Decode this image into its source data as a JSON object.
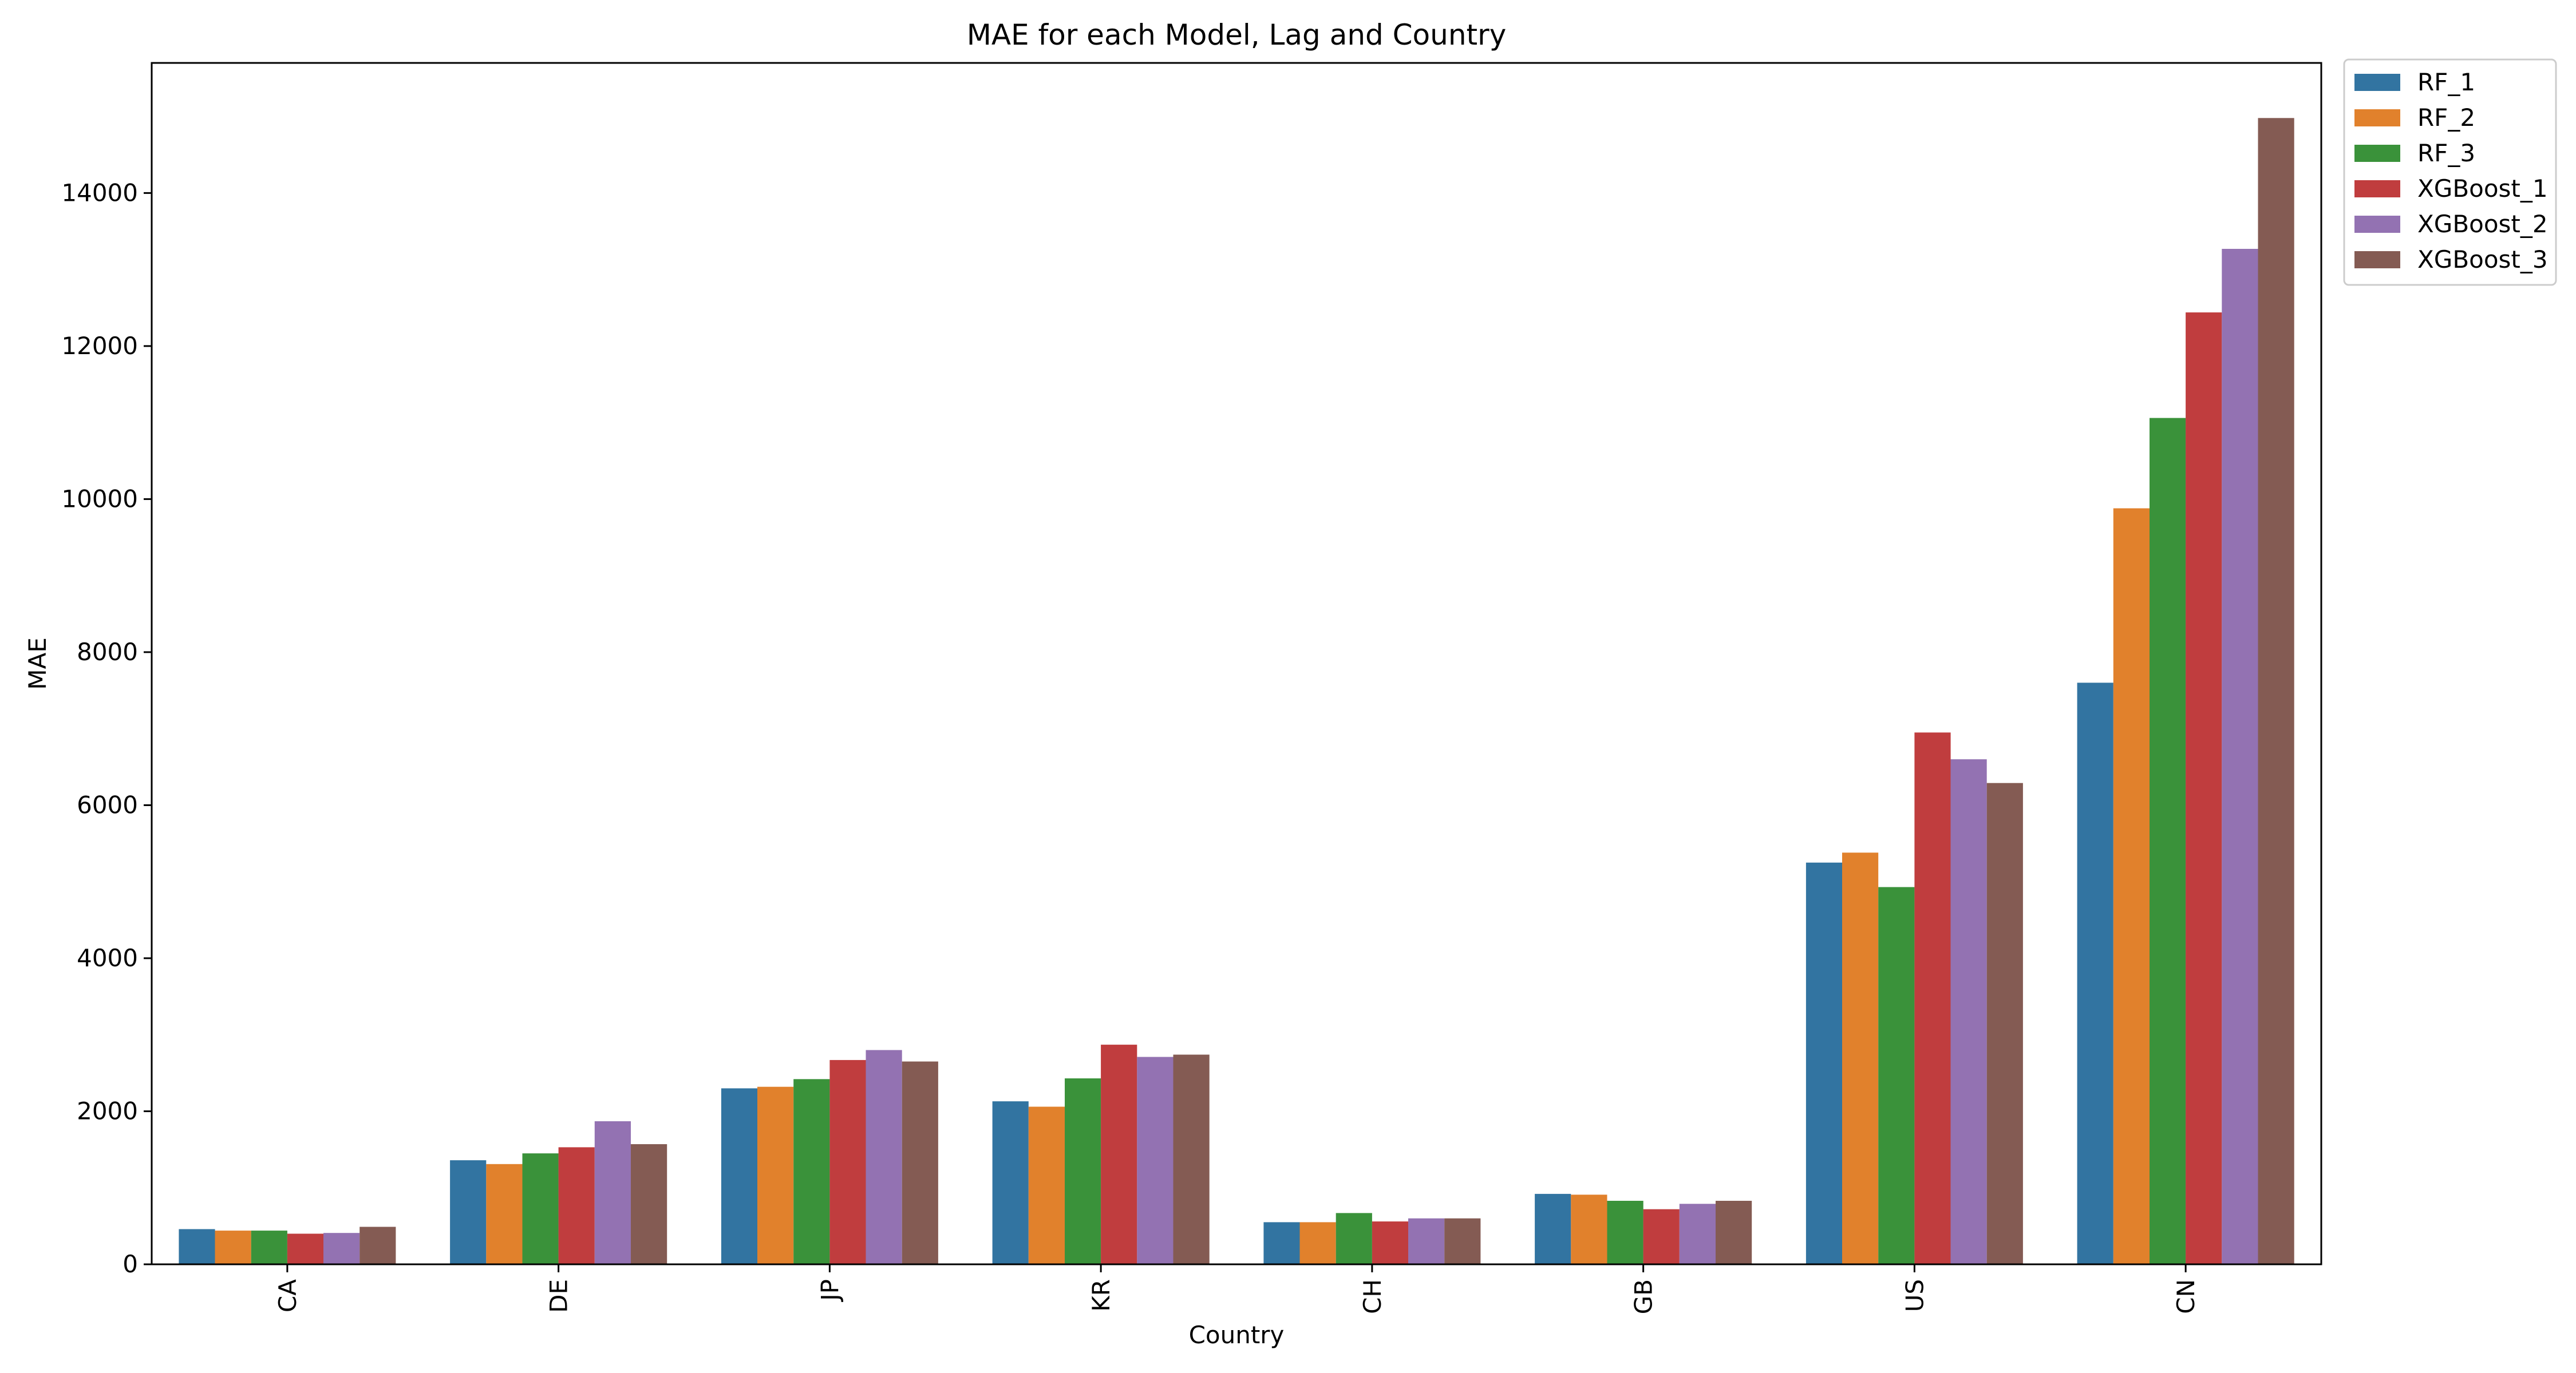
{
  "chart_data": {
    "type": "bar",
    "title": "MAE for each Model, Lag and Country",
    "xlabel": "Country",
    "ylabel": "MAE",
    "categories": [
      "CA",
      "DE",
      "JP",
      "KR",
      "CH",
      "GB",
      "US",
      "CN"
    ],
    "ylim": [
      0,
      15700
    ],
    "yticks": [
      0,
      2000,
      4000,
      6000,
      8000,
      10000,
      12000,
      14000
    ],
    "grid": false,
    "legend_position": "outside top-right",
    "series": [
      {
        "name": "RF_1",
        "color": "#3274a1",
        "values": [
          460,
          1360,
          2300,
          2130,
          550,
          920,
          5250,
          7600
        ]
      },
      {
        "name": "RF_2",
        "color": "#e1812c",
        "values": [
          440,
          1310,
          2320,
          2060,
          550,
          910,
          5380,
          9880
        ]
      },
      {
        "name": "RF_3",
        "color": "#3a923a",
        "values": [
          440,
          1450,
          2420,
          2430,
          670,
          830,
          4930,
          11060
        ]
      },
      {
        "name": "XGBoost_1",
        "color": "#c03d3e",
        "values": [
          400,
          1530,
          2670,
          2870,
          560,
          720,
          6950,
          12440
        ]
      },
      {
        "name": "XGBoost_2",
        "color": "#9372b2",
        "values": [
          410,
          1870,
          2800,
          2710,
          600,
          790,
          6600,
          13270
        ]
      },
      {
        "name": "XGBoost_3",
        "color": "#845b53",
        "values": [
          490,
          1570,
          2650,
          2740,
          600,
          830,
          6290,
          14980
        ]
      }
    ]
  }
}
